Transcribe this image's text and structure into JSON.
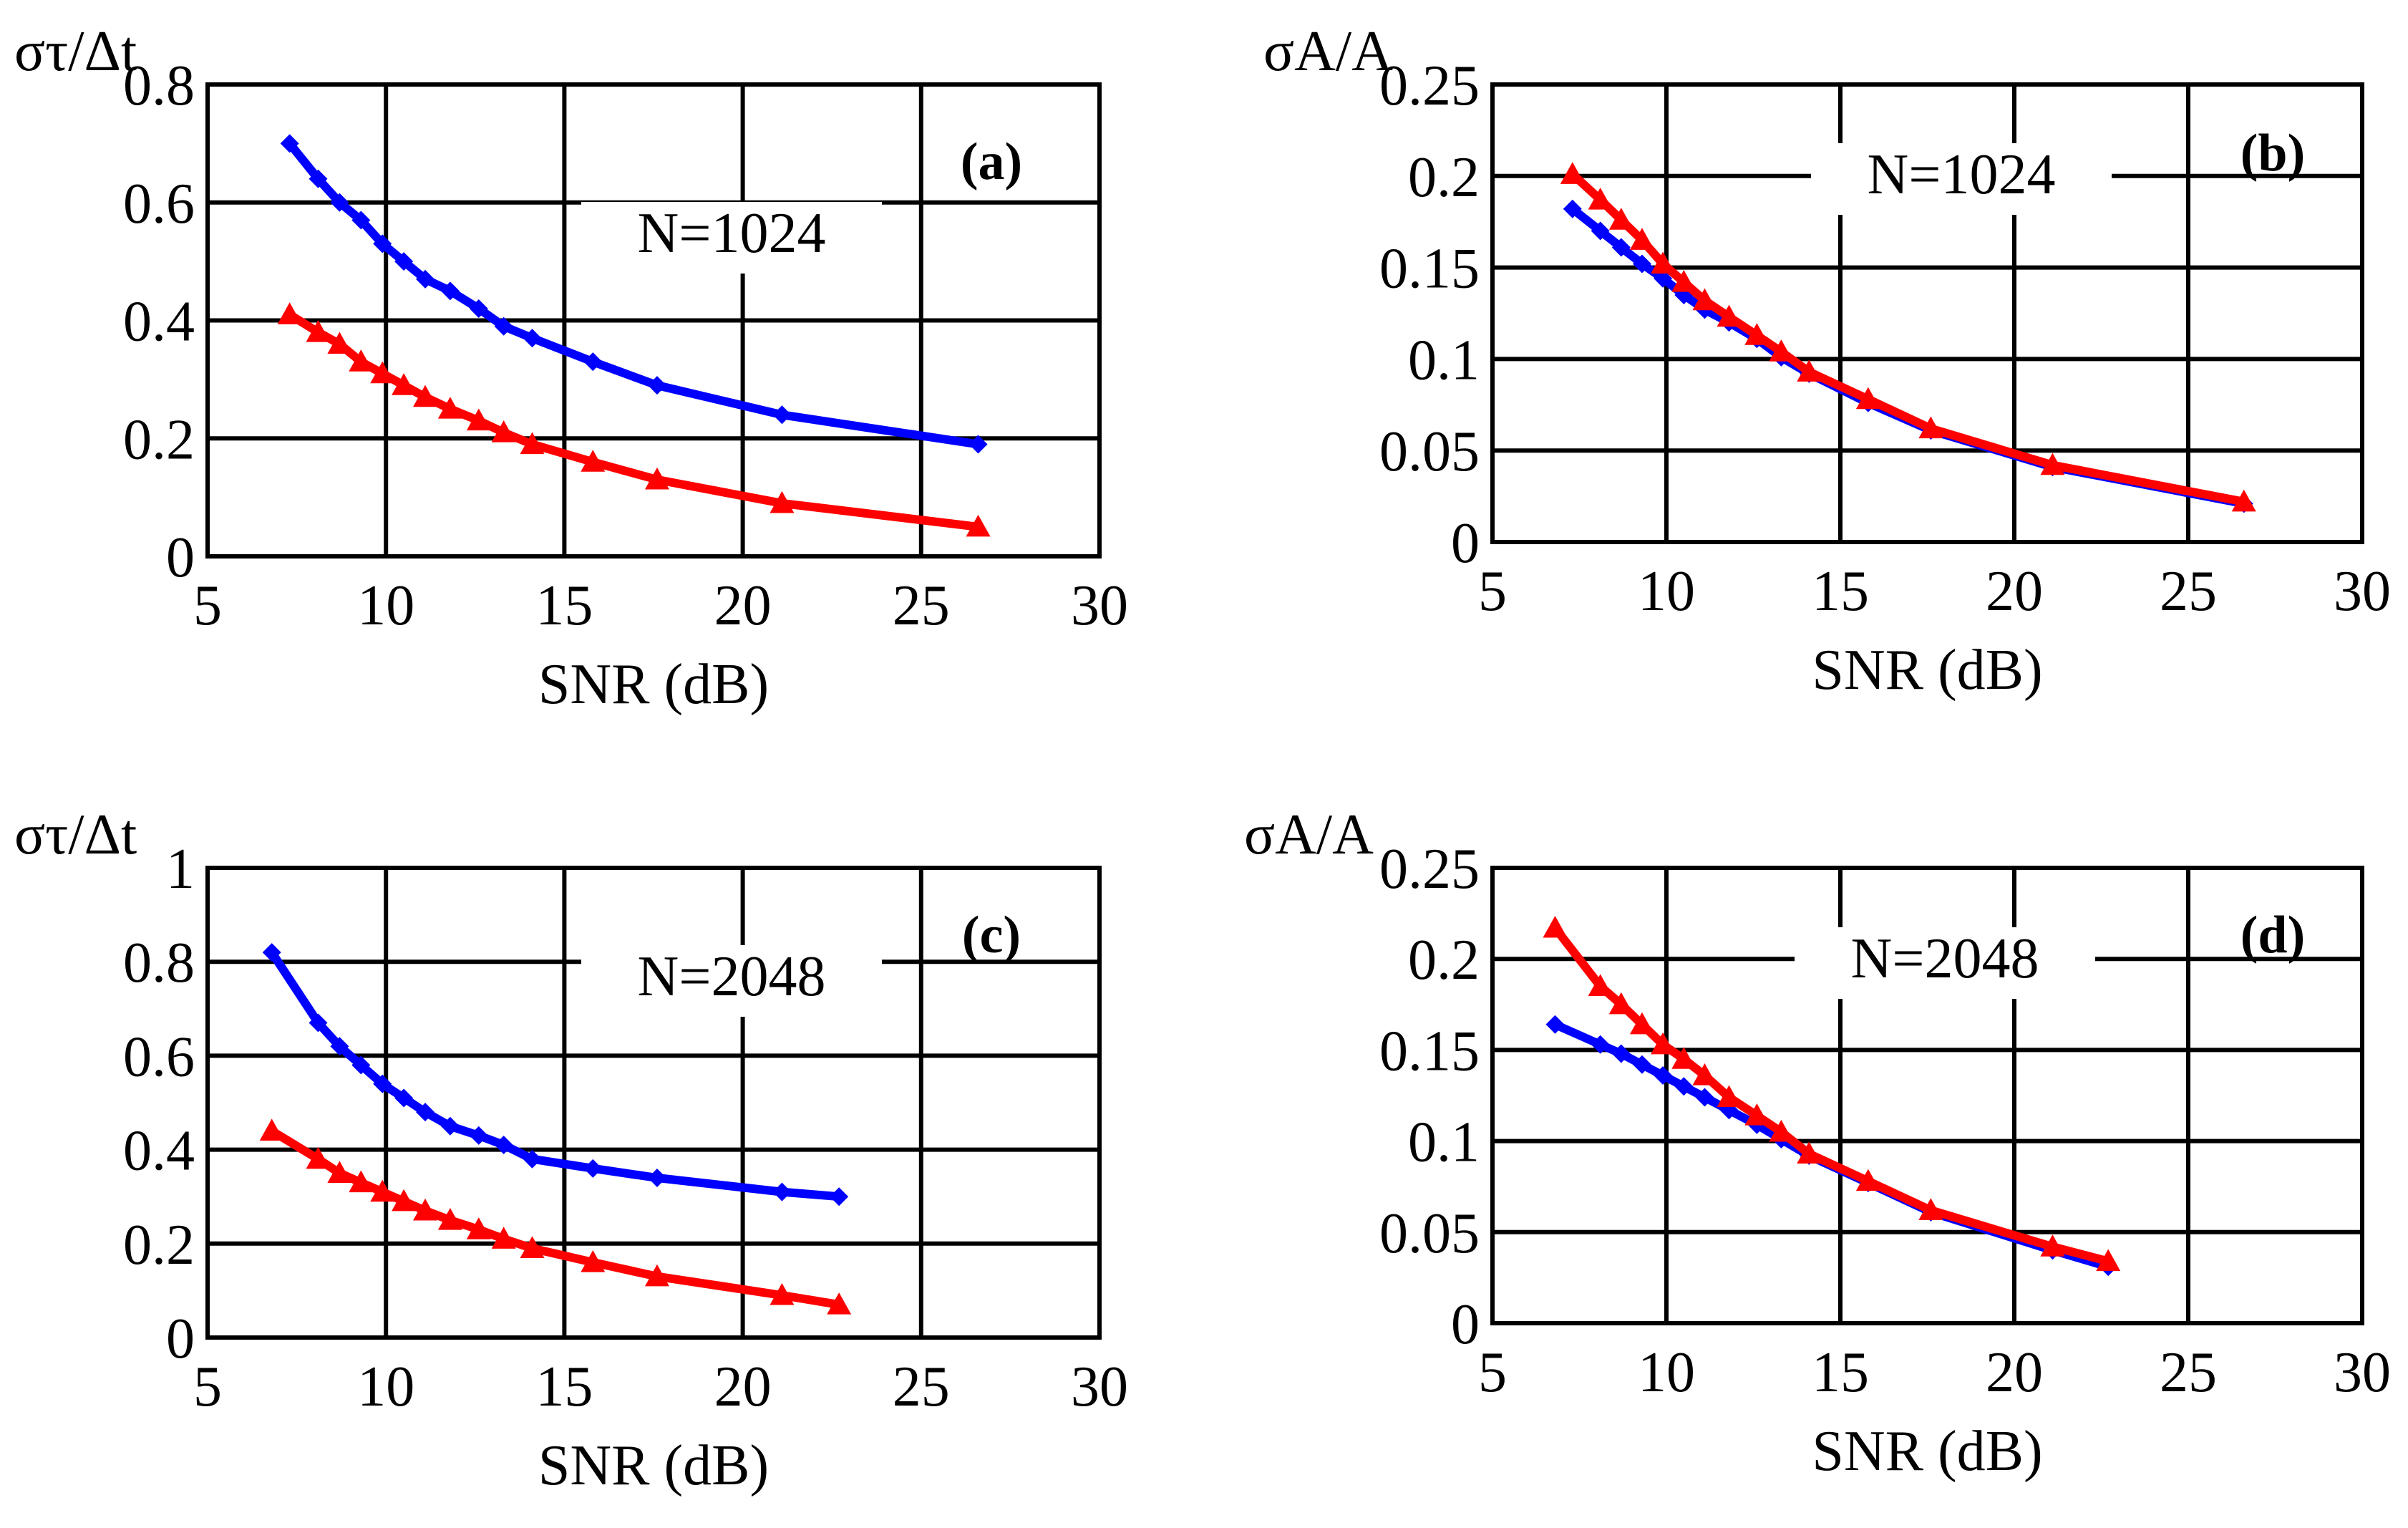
{
  "chart_data": [
    {
      "type": "line",
      "panel_label": "(a)",
      "annotation": "N=1024",
      "ylabel": "στ/Δt",
      "xlabel": "SNR (dB)",
      "xlim": [
        5,
        30
      ],
      "ylim": [
        0,
        0.8
      ],
      "xticks": [
        5,
        10,
        15,
        20,
        25,
        30
      ],
      "xtick_labels": [
        "5",
        "10",
        "15",
        "20",
        "25",
        "30"
      ],
      "yticks": [
        0,
        0.2,
        0.4,
        0.6,
        0.8
      ],
      "ytick_labels": [
        "0",
        "0.2",
        "0.4",
        "0.6",
        "0.8"
      ],
      "grid": true,
      "series": [
        {
          "name": "blue",
          "color": "#0000ff",
          "marker": "diamond",
          "x": [
            7.3,
            8.1,
            8.7,
            9.3,
            9.9,
            10.5,
            11.1,
            11.8,
            12.6,
            13.3,
            14.1,
            15.8,
            17.6,
            21.1,
            26.6
          ],
          "y": [
            0.7,
            0.64,
            0.6,
            0.57,
            0.53,
            0.5,
            0.47,
            0.45,
            0.42,
            0.39,
            0.37,
            0.33,
            0.29,
            0.24,
            0.19
          ]
        },
        {
          "name": "red",
          "color": "#ff0000",
          "marker": "triangle",
          "x": [
            7.3,
            8.1,
            8.7,
            9.3,
            9.9,
            10.5,
            11.1,
            11.8,
            12.6,
            13.3,
            14.1,
            15.8,
            17.6,
            21.1,
            26.6
          ],
          "y": [
            0.41,
            0.38,
            0.36,
            0.33,
            0.31,
            0.29,
            0.27,
            0.25,
            0.23,
            0.21,
            0.19,
            0.16,
            0.13,
            0.09,
            0.05
          ]
        }
      ]
    },
    {
      "type": "line",
      "panel_label": "(b)",
      "annotation": "N=1024",
      "ylabel": "σA/A",
      "xlabel": "SNR (dB)",
      "xlim": [
        5,
        30
      ],
      "ylim": [
        0,
        0.25
      ],
      "xticks": [
        5,
        10,
        15,
        20,
        25,
        30
      ],
      "xtick_labels": [
        "5",
        "10",
        "15",
        "20",
        "25",
        "30"
      ],
      "yticks": [
        0,
        0.05,
        0.1,
        0.15,
        0.2,
        0.25
      ],
      "ytick_labels": [
        "0",
        "0.05",
        "0.1",
        "0.15",
        "0.2",
        "0.25"
      ],
      "grid": true,
      "series": [
        {
          "name": "blue",
          "color": "#0000ff",
          "marker": "diamond",
          "x": [
            7.3,
            8.1,
            8.7,
            9.3,
            9.9,
            10.5,
            11.1,
            11.8,
            12.6,
            13.3,
            14.1,
            15.8,
            17.6,
            21.1,
            26.6
          ],
          "y": [
            0.182,
            0.17,
            0.161,
            0.152,
            0.144,
            0.135,
            0.127,
            0.12,
            0.111,
            0.101,
            0.092,
            0.076,
            0.061,
            0.041,
            0.021
          ]
        },
        {
          "name": "red",
          "color": "#ff0000",
          "marker": "triangle",
          "x": [
            7.3,
            8.1,
            8.7,
            9.3,
            9.9,
            10.5,
            11.1,
            11.8,
            12.6,
            13.3,
            14.1,
            15.8,
            17.6,
            21.1,
            26.6
          ],
          "y": [
            0.201,
            0.187,
            0.176,
            0.165,
            0.152,
            0.142,
            0.132,
            0.123,
            0.113,
            0.104,
            0.093,
            0.078,
            0.062,
            0.042,
            0.022
          ]
        }
      ]
    },
    {
      "type": "line",
      "panel_label": "(c)",
      "annotation": "N=2048",
      "ylabel": "στ/Δt",
      "xlabel": "SNR (dB)",
      "xlim": [
        5,
        30
      ],
      "ylim": [
        0,
        1
      ],
      "xticks": [
        5,
        10,
        15,
        20,
        25,
        30
      ],
      "xtick_labels": [
        "5",
        "10",
        "15",
        "20",
        "25",
        "30"
      ],
      "yticks": [
        0,
        0.2,
        0.4,
        0.6,
        0.8,
        1
      ],
      "ytick_labels": [
        "0",
        "0.2",
        "0.4",
        "0.6",
        "0.8",
        "1"
      ],
      "grid": true,
      "series": [
        {
          "name": "blue",
          "color": "#0000ff",
          "marker": "diamond",
          "x": [
            6.8,
            8.1,
            8.7,
            9.3,
            9.9,
            10.5,
            11.1,
            11.8,
            12.6,
            13.3,
            14.1,
            15.8,
            17.6,
            21.1,
            22.7
          ],
          "y": [
            0.82,
            0.67,
            0.62,
            0.58,
            0.54,
            0.51,
            0.48,
            0.45,
            0.43,
            0.41,
            0.38,
            0.36,
            0.34,
            0.31,
            0.3
          ]
        },
        {
          "name": "red",
          "color": "#ff0000",
          "marker": "triangle",
          "x": [
            6.8,
            8.1,
            8.7,
            9.3,
            9.9,
            10.5,
            11.1,
            11.8,
            12.6,
            13.3,
            14.1,
            15.8,
            17.6,
            21.1,
            22.7
          ],
          "y": [
            0.44,
            0.38,
            0.35,
            0.33,
            0.31,
            0.29,
            0.27,
            0.25,
            0.23,
            0.21,
            0.19,
            0.16,
            0.13,
            0.09,
            0.07
          ]
        }
      ]
    },
    {
      "type": "line",
      "panel_label": "(d)",
      "annotation": "N=2048",
      "ylabel": "σA/A",
      "xlabel": "SNR (dB)",
      "xlim": [
        5,
        30
      ],
      "ylim": [
        0,
        0.25
      ],
      "xticks": [
        5,
        10,
        15,
        20,
        25,
        30
      ],
      "xtick_labels": [
        "5",
        "10",
        "15",
        "20",
        "25",
        "30"
      ],
      "yticks": [
        0,
        0.05,
        0.1,
        0.15,
        0.2,
        0.25
      ],
      "ytick_labels": [
        "0",
        "0.05",
        "0.1",
        "0.15",
        "0.2",
        "0.25"
      ],
      "grid": true,
      "series": [
        {
          "name": "blue",
          "color": "#0000ff",
          "marker": "diamond",
          "x": [
            6.8,
            8.1,
            8.7,
            9.3,
            9.9,
            10.5,
            11.1,
            11.8,
            12.6,
            13.3,
            14.1,
            15.8,
            17.6,
            21.1,
            22.7
          ],
          "y": [
            0.164,
            0.153,
            0.148,
            0.142,
            0.136,
            0.13,
            0.124,
            0.117,
            0.109,
            0.101,
            0.092,
            0.077,
            0.061,
            0.04,
            0.031
          ]
        },
        {
          "name": "red",
          "color": "#ff0000",
          "marker": "triangle",
          "x": [
            6.8,
            8.1,
            8.7,
            9.3,
            9.9,
            10.5,
            11.1,
            11.8,
            12.6,
            13.3,
            14.1,
            15.8,
            17.6,
            21.1,
            22.7
          ],
          "y": [
            0.217,
            0.185,
            0.175,
            0.164,
            0.153,
            0.145,
            0.136,
            0.124,
            0.114,
            0.105,
            0.093,
            0.078,
            0.062,
            0.042,
            0.034
          ]
        }
      ]
    }
  ]
}
